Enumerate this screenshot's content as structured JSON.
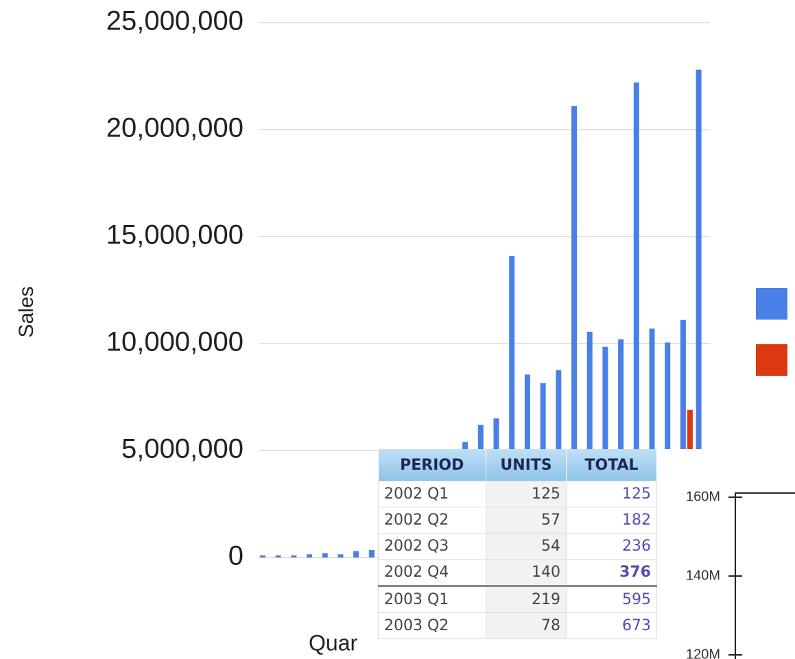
{
  "chart_data": [
    {
      "type": "bar",
      "ylabel": "Sales",
      "xlabel": "Quar",
      "categories": [
        null,
        null,
        null,
        null,
        null,
        null,
        null,
        null,
        null,
        null,
        null,
        null,
        null,
        null,
        null,
        null,
        null,
        null,
        null,
        null,
        null,
        null,
        null,
        null,
        null,
        null,
        null,
        null,
        null
      ],
      "series": [
        {
          "color": "#4a7fe6",
          "values": [
            100000,
            100000,
            100000,
            150000,
            200000,
            150000,
            300000,
            350000,
            null,
            null,
            null,
            null,
            null,
            5400000,
            6200000,
            6500000,
            14100000,
            8550000,
            8150000,
            8750000,
            21100000,
            10550000,
            9850000,
            10200000,
            22200000,
            10700000,
            10050000,
            11100000,
            22800000
          ]
        },
        {
          "color": "#dc3912",
          "values": [
            null,
            null,
            null,
            null,
            null,
            null,
            null,
            null,
            null,
            null,
            null,
            null,
            null,
            null,
            null,
            null,
            null,
            null,
            null,
            null,
            null,
            null,
            null,
            null,
            null,
            null,
            null,
            6900000,
            null
          ]
        }
      ],
      "ylim": [
        0,
        25000000
      ],
      "yticks": [
        0,
        {
          "value": 5000000,
          "label": "5,000,000"
        },
        {
          "value": 10000000,
          "label": "10,000,000"
        },
        {
          "value": 15000000,
          "label": "15,000,000"
        },
        {
          "value": 20000000,
          "label": "20,000,000"
        },
        {
          "value": 25000000,
          "label": "25,000,000"
        }
      ],
      "grid": true
    },
    {
      "type": "line",
      "ylim": [
        120000000,
        160000000
      ],
      "yticks": [
        {
          "value": 160000000,
          "label": "160M"
        },
        {
          "value": 140000000,
          "label": "140M"
        },
        {
          "value": 120000000,
          "label": "120M"
        }
      ]
    }
  ],
  "table": {
    "header": [
      "PERIOD",
      "UNITS",
      "TOTAL"
    ],
    "rows": [
      [
        "2002 Q1",
        125,
        125
      ],
      [
        "2002 Q2",
        57,
        182
      ],
      [
        "2002 Q3",
        54,
        236
      ],
      [
        "2002 Q4",
        140,
        376
      ],
      [
        "2003 Q1",
        219,
        595
      ],
      [
        "2003 Q2",
        78,
        673
      ]
    ]
  }
}
